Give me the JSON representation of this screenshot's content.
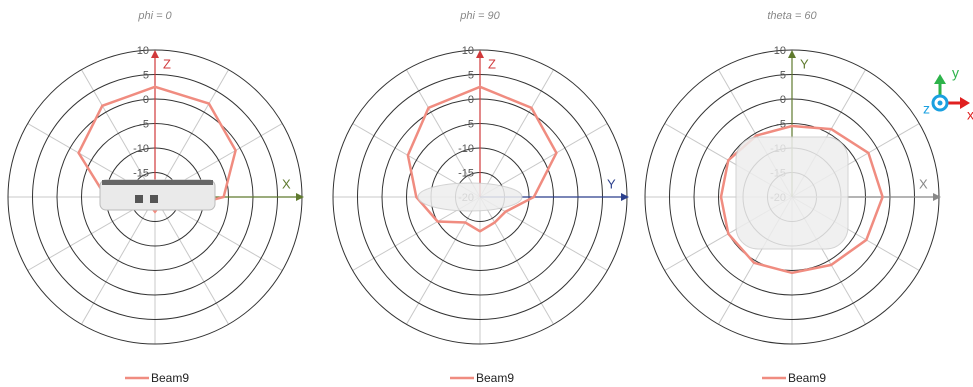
{
  "chart_data": [
    {
      "type": "polar",
      "title": "phi = 0",
      "theta": [
        0,
        30,
        60,
        90,
        120,
        150,
        180,
        210,
        240,
        270,
        300,
        330
      ],
      "series": [
        {
          "name": "Beam9",
          "color": "#f08c80",
          "values": [
            2.5,
            2,
            -1,
            -6,
            -15,
            -18,
            -17,
            -18,
            -15,
            -10,
            -2,
            1.5
          ]
        }
      ],
      "rlim": [
        -20,
        10
      ],
      "rticks": [
        -20,
        -15,
        -10,
        -5,
        0,
        5,
        10
      ],
      "vaxis_label": "Z",
      "vaxis_color": "#d0393b",
      "haxis_label": "X",
      "haxis_color": "#5f7a2e"
    },
    {
      "type": "polar",
      "title": "phi = 90",
      "theta": [
        0,
        30,
        60,
        90,
        120,
        150,
        180,
        210,
        240,
        270,
        300,
        330
      ],
      "series": [
        {
          "name": "Beam9",
          "color": "#f08c80",
          "values": [
            2.5,
            1,
            -2,
            -9,
            -14,
            -14,
            -13,
            -14,
            -10,
            -7,
            -3,
            1
          ]
        }
      ],
      "rlim": [
        -20,
        10
      ],
      "rticks": [
        -20,
        -15,
        -10,
        -5,
        0,
        5,
        10
      ],
      "vaxis_label": "Z",
      "vaxis_color": "#d0393b",
      "haxis_label": "Y",
      "haxis_color": "#2b3f8c"
    },
    {
      "type": "polar",
      "title": "theta = 60",
      "theta": [
        0,
        30,
        60,
        90,
        120,
        150,
        180,
        210,
        240,
        270,
        300,
        330
      ],
      "series": [
        {
          "name": "Beam9",
          "color": "#f08c80",
          "values": [
            -5.5,
            -4,
            -2,
            -1.5,
            -2.5,
            -4,
            -4.5,
            -4.5,
            -5,
            -5.5,
            -5,
            -5.5
          ]
        }
      ],
      "rlim": [
        -20,
        10
      ],
      "rticks": [
        -20,
        -15,
        -10,
        -5,
        0,
        5,
        10
      ],
      "vaxis_label": "Y",
      "vaxis_color": "#5f7a2e",
      "haxis_label": "X",
      "haxis_color": "#888888"
    }
  ],
  "axis_icon": {
    "y": "y",
    "z": "z",
    "x": "x"
  }
}
